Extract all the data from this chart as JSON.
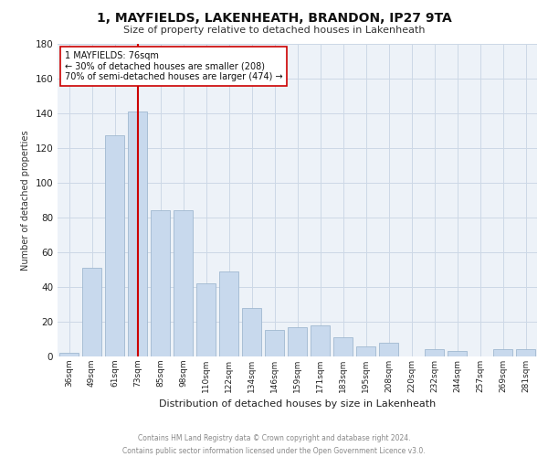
{
  "title": "1, MAYFIELDS, LAKENHEATH, BRANDON, IP27 9TA",
  "subtitle": "Size of property relative to detached houses in Lakenheath",
  "xlabel": "Distribution of detached houses by size in Lakenheath",
  "ylabel": "Number of detached properties",
  "categories": [
    "36sqm",
    "49sqm",
    "61sqm",
    "73sqm",
    "85sqm",
    "98sqm",
    "110sqm",
    "122sqm",
    "134sqm",
    "146sqm",
    "159sqm",
    "171sqm",
    "183sqm",
    "195sqm",
    "208sqm",
    "220sqm",
    "232sqm",
    "244sqm",
    "257sqm",
    "269sqm",
    "281sqm"
  ],
  "values": [
    2,
    51,
    127,
    141,
    84,
    84,
    42,
    49,
    28,
    15,
    17,
    18,
    11,
    6,
    8,
    0,
    4,
    3,
    0,
    4,
    4
  ],
  "bar_color": "#c8d9ed",
  "bar_edge_color": "#a0b8d0",
  "grid_color": "#ccd8e6",
  "bg_color": "#edf2f8",
  "vline_color": "#cc0000",
  "annotation_text": "1 MAYFIELDS: 76sqm\n← 30% of detached houses are smaller (208)\n70% of semi-detached houses are larger (474) →",
  "annotation_box_color": "#ffffff",
  "annotation_box_edge": "#cc0000",
  "ylim": [
    0,
    180
  ],
  "yticks": [
    0,
    20,
    40,
    60,
    80,
    100,
    120,
    140,
    160,
    180
  ],
  "footer_line1": "Contains HM Land Registry data © Crown copyright and database right 2024.",
  "footer_line2": "Contains public sector information licensed under the Open Government Licence v3.0."
}
